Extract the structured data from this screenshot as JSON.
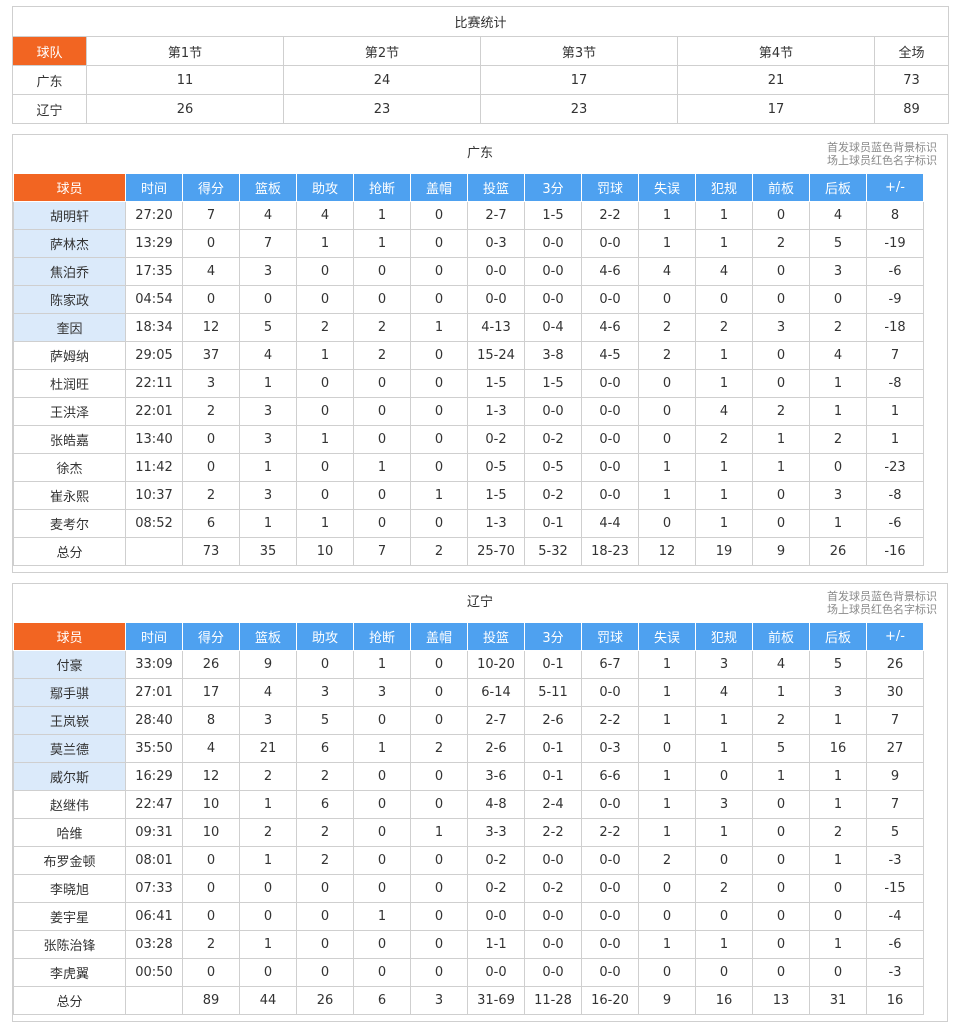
{
  "summary": {
    "title": "比赛统计",
    "header": [
      "球队",
      "第1节",
      "第2节",
      "第3节",
      "第4节",
      "全场"
    ],
    "rows": [
      [
        "广东",
        "11",
        "24",
        "17",
        "21",
        "73"
      ],
      [
        "辽宁",
        "26",
        "23",
        "23",
        "17",
        "89"
      ]
    ]
  },
  "columns": [
    "球员",
    "时间",
    "得分",
    "篮板",
    "助攻",
    "抢断",
    "盖帽",
    "投篮",
    "3分",
    "罚球",
    "失误",
    "犯规",
    "前板",
    "后板",
    "+/-"
  ],
  "note": [
    "首发球员蓝色背景标识",
    "场上球员红色名字标识"
  ],
  "colors": {
    "accent": "#f26522",
    "header_blue": "#4ea1f0",
    "starter_bg": "#dbeafa"
  },
  "teams": [
    {
      "name": "广东",
      "players": [
        {
          "name": "胡明轩",
          "starter": true,
          "stats": [
            "27:20",
            "7",
            "4",
            "4",
            "1",
            "0",
            "2-7",
            "1-5",
            "2-2",
            "1",
            "1",
            "0",
            "4",
            "8"
          ]
        },
        {
          "name": "萨林杰",
          "starter": true,
          "stats": [
            "13:29",
            "0",
            "7",
            "1",
            "1",
            "0",
            "0-3",
            "0-0",
            "0-0",
            "1",
            "1",
            "2",
            "5",
            "-19"
          ]
        },
        {
          "name": "焦泊乔",
          "starter": true,
          "stats": [
            "17:35",
            "4",
            "3",
            "0",
            "0",
            "0",
            "0-0",
            "0-0",
            "4-6",
            "4",
            "4",
            "0",
            "3",
            "-6"
          ]
        },
        {
          "name": "陈家政",
          "starter": true,
          "stats": [
            "04:54",
            "0",
            "0",
            "0",
            "0",
            "0",
            "0-0",
            "0-0",
            "0-0",
            "0",
            "0",
            "0",
            "0",
            "-9"
          ]
        },
        {
          "name": "奎因",
          "starter": true,
          "stats": [
            "18:34",
            "12",
            "5",
            "2",
            "2",
            "1",
            "4-13",
            "0-4",
            "4-6",
            "2",
            "2",
            "3",
            "2",
            "-18"
          ]
        },
        {
          "name": "萨姆纳",
          "starter": false,
          "stats": [
            "29:05",
            "37",
            "4",
            "1",
            "2",
            "0",
            "15-24",
            "3-8",
            "4-5",
            "2",
            "1",
            "0",
            "4",
            "7"
          ]
        },
        {
          "name": "杜润旺",
          "starter": false,
          "stats": [
            "22:11",
            "3",
            "1",
            "0",
            "0",
            "0",
            "1-5",
            "1-5",
            "0-0",
            "0",
            "1",
            "0",
            "1",
            "-8"
          ]
        },
        {
          "name": "王洪泽",
          "starter": false,
          "stats": [
            "22:01",
            "2",
            "3",
            "0",
            "0",
            "0",
            "1-3",
            "0-0",
            "0-0",
            "0",
            "4",
            "2",
            "1",
            "1"
          ]
        },
        {
          "name": "张皓嘉",
          "starter": false,
          "stats": [
            "13:40",
            "0",
            "3",
            "1",
            "0",
            "0",
            "0-2",
            "0-2",
            "0-0",
            "0",
            "2",
            "1",
            "2",
            "1"
          ]
        },
        {
          "name": "徐杰",
          "starter": false,
          "stats": [
            "11:42",
            "0",
            "1",
            "0",
            "1",
            "0",
            "0-5",
            "0-5",
            "0-0",
            "1",
            "1",
            "1",
            "0",
            "-23"
          ]
        },
        {
          "name": "崔永熙",
          "starter": false,
          "stats": [
            "10:37",
            "2",
            "3",
            "0",
            "0",
            "1",
            "1-5",
            "0-2",
            "0-0",
            "1",
            "1",
            "0",
            "3",
            "-8"
          ]
        },
        {
          "name": "麦考尔",
          "starter": false,
          "stats": [
            "08:52",
            "6",
            "1",
            "1",
            "0",
            "0",
            "1-3",
            "0-1",
            "4-4",
            "0",
            "1",
            "0",
            "1",
            "-6"
          ]
        }
      ],
      "total": {
        "label": "总分",
        "stats": [
          "",
          "73",
          "35",
          "10",
          "7",
          "2",
          "25-70",
          "5-32",
          "18-23",
          "12",
          "19",
          "9",
          "26",
          "-16"
        ]
      }
    },
    {
      "name": "辽宁",
      "players": [
        {
          "name": "付豪",
          "starter": true,
          "stats": [
            "33:09",
            "26",
            "9",
            "0",
            "1",
            "0",
            "10-20",
            "0-1",
            "6-7",
            "1",
            "3",
            "4",
            "5",
            "26"
          ]
        },
        {
          "name": "鄢手骐",
          "starter": true,
          "stats": [
            "27:01",
            "17",
            "4",
            "3",
            "3",
            "0",
            "6-14",
            "5-11",
            "0-0",
            "1",
            "4",
            "1",
            "3",
            "30"
          ]
        },
        {
          "name": "王岚嵚",
          "starter": true,
          "stats": [
            "28:40",
            "8",
            "3",
            "5",
            "0",
            "0",
            "2-7",
            "2-6",
            "2-2",
            "1",
            "1",
            "2",
            "1",
            "7"
          ]
        },
        {
          "name": "莫兰德",
          "starter": true,
          "stats": [
            "35:50",
            "4",
            "21",
            "6",
            "1",
            "2",
            "2-6",
            "0-1",
            "0-3",
            "0",
            "1",
            "5",
            "16",
            "27"
          ]
        },
        {
          "name": "威尔斯",
          "starter": true,
          "stats": [
            "16:29",
            "12",
            "2",
            "2",
            "0",
            "0",
            "3-6",
            "0-1",
            "6-6",
            "1",
            "0",
            "1",
            "1",
            "9"
          ]
        },
        {
          "name": "赵继伟",
          "starter": false,
          "stats": [
            "22:47",
            "10",
            "1",
            "6",
            "0",
            "0",
            "4-8",
            "2-4",
            "0-0",
            "1",
            "3",
            "0",
            "1",
            "7"
          ]
        },
        {
          "name": "哈维",
          "starter": false,
          "stats": [
            "09:31",
            "10",
            "2",
            "2",
            "0",
            "1",
            "3-3",
            "2-2",
            "2-2",
            "1",
            "1",
            "0",
            "2",
            "5"
          ]
        },
        {
          "name": "布罗金顿",
          "starter": false,
          "stats": [
            "08:01",
            "0",
            "1",
            "2",
            "0",
            "0",
            "0-2",
            "0-0",
            "0-0",
            "2",
            "0",
            "0",
            "1",
            "-3"
          ]
        },
        {
          "name": "李晓旭",
          "starter": false,
          "stats": [
            "07:33",
            "0",
            "0",
            "0",
            "0",
            "0",
            "0-2",
            "0-2",
            "0-0",
            "0",
            "2",
            "0",
            "0",
            "-15"
          ]
        },
        {
          "name": "姜宇星",
          "starter": false,
          "stats": [
            "06:41",
            "0",
            "0",
            "0",
            "1",
            "0",
            "0-0",
            "0-0",
            "0-0",
            "0",
            "0",
            "0",
            "0",
            "-4"
          ]
        },
        {
          "name": "张陈治锋",
          "starter": false,
          "stats": [
            "03:28",
            "2",
            "1",
            "0",
            "0",
            "0",
            "1-1",
            "0-0",
            "0-0",
            "1",
            "1",
            "0",
            "1",
            "-6"
          ]
        },
        {
          "name": "李虎翼",
          "starter": false,
          "stats": [
            "00:50",
            "0",
            "0",
            "0",
            "0",
            "0",
            "0-0",
            "0-0",
            "0-0",
            "0",
            "0",
            "0",
            "0",
            "-3"
          ]
        }
      ],
      "total": {
        "label": "总分",
        "stats": [
          "",
          "89",
          "44",
          "26",
          "6",
          "3",
          "31-69",
          "11-28",
          "16-20",
          "9",
          "16",
          "13",
          "31",
          "16"
        ]
      }
    }
  ]
}
